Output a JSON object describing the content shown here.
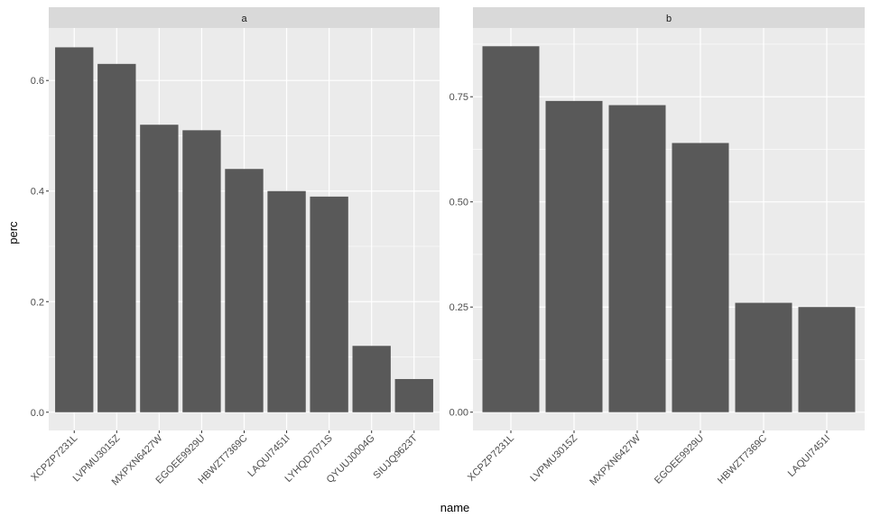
{
  "chart_data": [
    {
      "type": "bar",
      "facet": "a",
      "categories": [
        "XCPZP7231L",
        "LVPMU3015Z",
        "MXPXN6427W",
        "EGOEE9929U",
        "HBWZT7369C",
        "LAQUI7451I",
        "LYHQD7071S",
        "QYUUJ0004G",
        "SIUJQ9623T"
      ],
      "values": [
        0.66,
        0.63,
        0.52,
        0.51,
        0.44,
        0.4,
        0.39,
        0.12,
        0.06
      ],
      "yticks": [
        0.0,
        0.2,
        0.4,
        0.6
      ],
      "ytick_labels": [
        "0.0",
        "0.2",
        "0.4",
        "0.6"
      ],
      "ylim": [
        -0.033,
        0.695
      ],
      "grid": true
    },
    {
      "type": "bar",
      "facet": "b",
      "categories": [
        "XCPZP7231L",
        "LVPMU3015Z",
        "MXPXN6427W",
        "EGOEE9929U",
        "HBWZT7369C",
        "LAQUI7451I"
      ],
      "values": [
        0.87,
        0.74,
        0.73,
        0.64,
        0.26,
        0.25
      ],
      "yticks": [
        0.0,
        0.25,
        0.5,
        0.75
      ],
      "ytick_labels": [
        "0.00",
        "0.25",
        "0.50",
        "0.75"
      ],
      "ylim": [
        -0.0435,
        0.9135
      ],
      "grid": true
    }
  ],
  "xlabel": "name",
  "ylabel": "perc",
  "colors": {
    "bar": "#595959",
    "panel": "#EBEBEB",
    "strip": "#D9D9D9",
    "grid": "#FFFFFF"
  }
}
